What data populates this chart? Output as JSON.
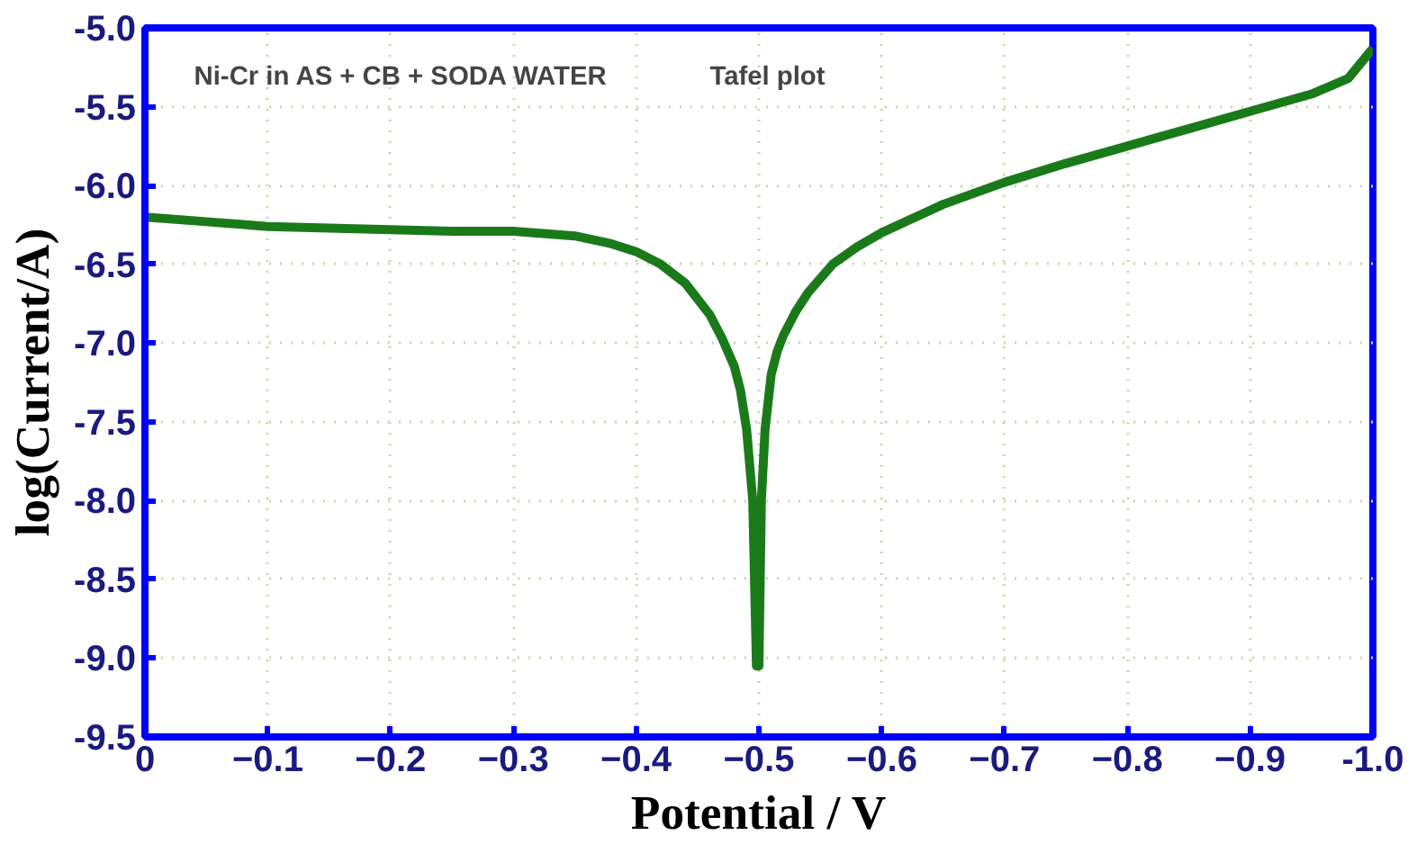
{
  "chart_data": {
    "type": "line",
    "xlabel": "Potential / V",
    "ylabel": "log(Current/A)",
    "annotations": [
      "Ni-Cr in AS + CB + SODA WATER",
      "Tafel plot"
    ],
    "x": [
      0,
      -0.05,
      -0.1,
      -0.15,
      -0.2,
      -0.25,
      -0.3,
      -0.35,
      -0.38,
      -0.4,
      -0.42,
      -0.44,
      -0.46,
      -0.47,
      -0.48,
      -0.485,
      -0.49,
      -0.495,
      -0.498,
      -0.5,
      -0.502,
      -0.505,
      -0.51,
      -0.515,
      -0.52,
      -0.53,
      -0.54,
      -0.56,
      -0.58,
      -0.6,
      -0.65,
      -0.7,
      -0.75,
      -0.8,
      -0.85,
      -0.9,
      -0.95,
      -0.98,
      -1.0
    ],
    "series": [
      {
        "color": "#1a7a1a",
        "values": [
          -6.2,
          -6.23,
          -6.26,
          -6.27,
          -6.28,
          -6.29,
          -6.29,
          -6.32,
          -6.37,
          -6.42,
          -6.5,
          -6.62,
          -6.82,
          -6.97,
          -7.15,
          -7.3,
          -7.55,
          -8.0,
          -9.05,
          -9.05,
          -8.0,
          -7.55,
          -7.2,
          -7.05,
          -6.95,
          -6.8,
          -6.68,
          -6.5,
          -6.39,
          -6.3,
          -6.12,
          -5.98,
          -5.86,
          -5.75,
          -5.64,
          -5.53,
          -5.42,
          -5.32,
          -5.13
        ]
      }
    ],
    "xlim": [
      0,
      -1.0
    ],
    "ylim": [
      -9.5,
      -5.0
    ],
    "xticks": [
      0,
      -0.1,
      -0.2,
      -0.3,
      -0.4,
      -0.5,
      -0.6,
      -0.7,
      -0.8,
      -0.9,
      {
        "value": -1.0,
        "label": "-1.0"
      }
    ],
    "yticks": [
      {
        "value": -9.5,
        "label": "-9.5"
      },
      {
        "value": -9.0,
        "label": "-9.0"
      },
      {
        "value": -8.5,
        "label": "-8.5"
      },
      {
        "value": -8.0,
        "label": "-8.0"
      },
      {
        "value": -7.5,
        "label": "-7.5"
      },
      {
        "value": -7.0,
        "label": "-7.0"
      },
      {
        "value": -6.5,
        "label": "-6.5"
      },
      {
        "value": -6.0,
        "label": "-6.0"
      },
      {
        "value": -5.5,
        "label": "-5.5"
      },
      {
        "value": -5.0,
        "label": "-5.0"
      }
    ],
    "grid": true,
    "marker": "none",
    "line_style": "solid"
  }
}
